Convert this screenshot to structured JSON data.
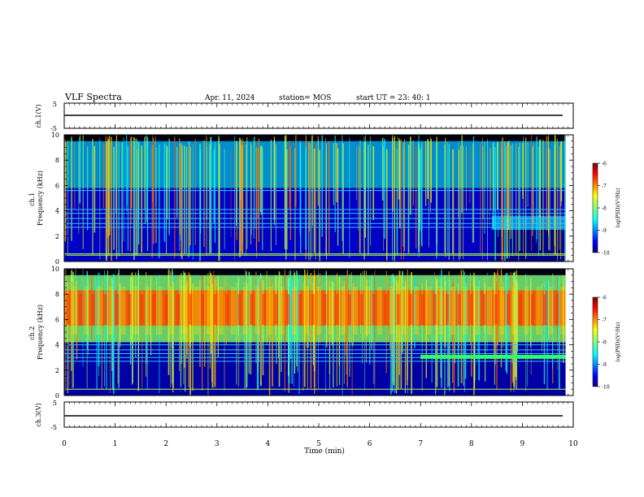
{
  "header": {
    "title": "VLF Spectra",
    "date": "Apr. 11, 2024",
    "station": "station= MOS",
    "start": "start  UT  =   23: 40: 1"
  },
  "chart_data": [
    {
      "type": "line",
      "name": "ch1-waveform",
      "ylabel": "ch.1(V)",
      "ylim": [
        -5,
        5
      ],
      "ytick_labels": [
        "5",
        "-5"
      ],
      "xlim": [
        0,
        10
      ],
      "values_summary": "flat trace near 0 V across 0-10 min"
    },
    {
      "type": "heatmap",
      "name": "ch1-spectrogram",
      "ylabel": "ch.1\nFrequency (kHz)",
      "ylim": [
        0,
        10
      ],
      "ytick_labels": [
        "0",
        "2",
        "4",
        "6",
        "8",
        "10"
      ],
      "xlim": [
        0,
        10
      ],
      "colorbar": {
        "label": "log(PSD)(V²/Hz)",
        "range": [
          -10,
          -6
        ],
        "tick_labels": [
          "-6",
          "-7",
          "-8",
          "-9",
          "-10"
        ]
      },
      "bands": [
        {
          "t": [
            0,
            10
          ],
          "f": [
            5.8,
            9.5
          ],
          "level": -8.8
        },
        {
          "t": [
            0,
            10
          ],
          "f": [
            0,
            5.8
          ],
          "level": -9.6
        },
        {
          "t": [
            8.4,
            9.85
          ],
          "f": [
            0,
            2.5
          ],
          "level": -10
        },
        {
          "t": [
            8.4,
            9.85
          ],
          "f": [
            2.5,
            3.6
          ],
          "level": -8.8
        }
      ],
      "lines_kHz": [
        0.5,
        0.6,
        2.7,
        3.0,
        3.4,
        3.8,
        4.1,
        5.6
      ],
      "notes": "dense vertical sferic impulses throughout"
    },
    {
      "type": "heatmap",
      "name": "ch2-spectrogram",
      "ylabel": "ch.2\nFrequency (kHz)",
      "ylim": [
        0,
        10
      ],
      "ytick_labels": [
        "0",
        "2",
        "4",
        "6",
        "8",
        "10"
      ],
      "xlim": [
        0,
        10
      ],
      "colorbar": {
        "label": "log(PSD)(V²/Hz)",
        "range": [
          -10,
          -6
        ],
        "tick_labels": [
          "-6",
          "-7",
          "-8",
          "-9",
          "-10"
        ]
      },
      "bands": [
        {
          "t": [
            0,
            10
          ],
          "f": [
            4.2,
            9.5
          ],
          "level": -8.0
        },
        {
          "t": [
            0,
            10
          ],
          "f": [
            5.5,
            8.3
          ],
          "level": -6.8
        },
        {
          "t": [
            0,
            10
          ],
          "f": [
            0,
            4.2
          ],
          "level": -9.7
        },
        {
          "t": [
            7.0,
            9.85
          ],
          "f": [
            2.9,
            3.2
          ],
          "level": -8.2
        }
      ],
      "lines_kHz": [
        0.5,
        2.7,
        3.0,
        3.3,
        3.6,
        4.0
      ],
      "notes": "strong broadband emission 4-9 kHz with periodic maxima"
    },
    {
      "type": "line",
      "name": "ch3-waveform",
      "ylabel": "ch.3(V)",
      "ylim": [
        -5,
        5
      ],
      "ytick_labels": [
        "5",
        "-5"
      ],
      "xlim": [
        0,
        10
      ],
      "values_summary": "flat trace near 0 V across 0-10 min"
    }
  ],
  "xaxis": {
    "label": "Time (min)",
    "ticks": [
      0,
      1,
      2,
      3,
      4,
      5,
      6,
      7,
      8,
      9,
      10
    ],
    "tick_labels": [
      "0",
      "1",
      "2",
      "3",
      "4",
      "5",
      "6",
      "7",
      "8",
      "9",
      "10"
    ]
  },
  "colors": {
    "jet": [
      "#000080",
      "#0000ff",
      "#0080ff",
      "#00ffff",
      "#80ff80",
      "#ffff00",
      "#ff8000",
      "#ff0000",
      "#800000"
    ]
  }
}
